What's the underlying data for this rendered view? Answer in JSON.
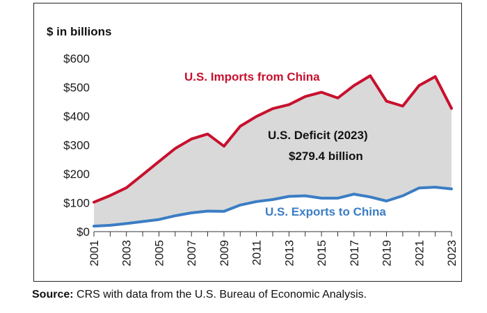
{
  "chart_data": {
    "type": "area",
    "ylabel": "$ in billions",
    "ylim": [
      0,
      600
    ],
    "yticks": [
      "$0",
      "$100",
      "$200",
      "$300",
      "$400",
      "$500",
      "$600"
    ],
    "ytick_values": [
      0,
      100,
      200,
      300,
      400,
      500,
      600
    ],
    "x": [
      2001,
      2002,
      2003,
      2004,
      2005,
      2006,
      2007,
      2008,
      2009,
      2010,
      2011,
      2012,
      2013,
      2014,
      2015,
      2016,
      2017,
      2018,
      2019,
      2020,
      2021,
      2022,
      2023
    ],
    "xtick_labels": [
      "2001",
      "2003",
      "2005",
      "2007",
      "2009",
      "2011",
      "2013",
      "2015",
      "2017",
      "2019",
      "2021",
      "2023"
    ],
    "series": [
      {
        "name": "U.S. Imports from China",
        "color": "#c8102e",
        "values": [
          102,
          125,
          152,
          197,
          243,
          288,
          321,
          338,
          296,
          365,
          399,
          426,
          440,
          468,
          483,
          463,
          506,
          540,
          452,
          435,
          506,
          537,
          427
        ]
      },
      {
        "name": "U.S. Exports to China",
        "color": "#3b7dc4",
        "values": [
          19,
          22,
          28,
          35,
          42,
          55,
          65,
          71,
          70,
          92,
          104,
          111,
          122,
          124,
          116,
          116,
          130,
          120,
          106,
          124,
          151,
          154,
          148
        ]
      }
    ],
    "annotations": [
      {
        "text_line1": "U.S. Deficit (2023)",
        "text_line2": "$279.4 billion"
      }
    ],
    "fill_color": "#d9d9d9"
  },
  "source": {
    "label": "Source:",
    "text": " CRS with data from the U.S. Bureau of Economic Analysis."
  }
}
